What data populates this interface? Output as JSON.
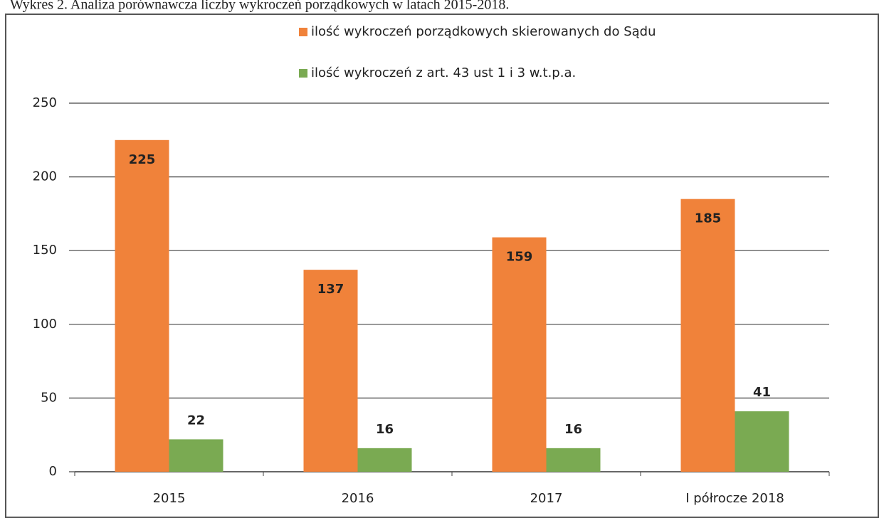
{
  "chart_data": {
    "type": "bar",
    "title": "Wykres 2. Analiza porównawcza liczby wykroczeń porządkowych w latach 2015-2018.",
    "categories": [
      "2015",
      "2016",
      "2017",
      "I półrocze 2018"
    ],
    "series": [
      {
        "name": "ilość wykroczeń porządkowych skierowanych do Sądu",
        "color": "#f0823a",
        "values": [
          225,
          137,
          159,
          185
        ]
      },
      {
        "name": "ilość wykroczeń z art. 43 ust 1 i 3 w.t.p.a.",
        "color": "#7aaa52",
        "values": [
          22,
          16,
          16,
          41
        ]
      }
    ],
    "ylim": [
      0,
      250
    ],
    "yticks": [
      0,
      50,
      100,
      150,
      200,
      250
    ],
    "grid": true
  }
}
